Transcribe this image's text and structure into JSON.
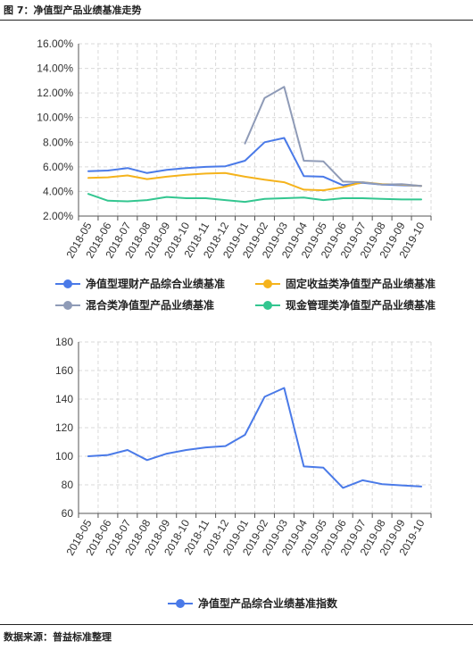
{
  "figure": {
    "title": "图 7：净值型产品业绩基准走势",
    "source": "数据来源：普益标准整理"
  },
  "colors": {
    "blue": "#4a7ae8",
    "orange": "#f5b31c",
    "gray": "#8f9bb7",
    "green": "#33c690"
  },
  "chart_data": [
    {
      "type": "line",
      "title": "",
      "x": [
        "2018-05",
        "2018-06",
        "2018-07",
        "2018-08",
        "2018-09",
        "2018-10",
        "2018-11",
        "2018-12",
        "2019-01",
        "2019-02",
        "2019-03",
        "2019-04",
        "2019-05",
        "2019-06",
        "2019-07",
        "2019-08",
        "2019-09",
        "2019-10"
      ],
      "ylim": [
        2,
        16
      ],
      "yticks": [
        2,
        4,
        6,
        8,
        10,
        12,
        14,
        16
      ],
      "ytick_labels": [
        "2.00%",
        "4.00%",
        "6.00%",
        "8.00%",
        "10.00%",
        "12.00%",
        "14.00%",
        "16.00%"
      ],
      "grid": true,
      "legend": "bottom",
      "series": [
        {
          "name": "净值型理财产品综合业绩基准",
          "color": "blue",
          "values": [
            5.65,
            5.7,
            5.9,
            5.5,
            5.75,
            5.9,
            6.0,
            6.05,
            6.5,
            8.0,
            8.35,
            5.25,
            5.2,
            4.5,
            4.7,
            4.55,
            4.5,
            4.45
          ]
        },
        {
          "name": "固定收益类净值型产品业绩基准",
          "color": "orange",
          "values": [
            5.1,
            5.15,
            5.3,
            5.0,
            5.2,
            5.35,
            5.45,
            5.5,
            5.2,
            4.95,
            4.75,
            4.15,
            4.1,
            4.35,
            4.75,
            4.6,
            4.55,
            4.45
          ]
        },
        {
          "name": "混合类净值型产品业绩基准",
          "color": "gray",
          "values": [
            null,
            null,
            null,
            null,
            null,
            null,
            null,
            null,
            7.9,
            11.6,
            12.5,
            6.5,
            6.45,
            4.8,
            4.75,
            4.55,
            4.6,
            4.45
          ]
        },
        {
          "name": "现金管理类净值型产品业绩基准",
          "color": "green",
          "values": [
            3.8,
            3.25,
            3.2,
            3.3,
            3.55,
            3.45,
            3.45,
            3.3,
            3.15,
            3.4,
            3.45,
            3.5,
            3.3,
            3.45,
            3.45,
            3.4,
            3.35,
            3.35
          ]
        }
      ]
    },
    {
      "type": "line",
      "title": "",
      "x": [
        "2018-05",
        "2018-06",
        "2018-07",
        "2018-08",
        "2018-09",
        "2018-10",
        "2018-11",
        "2018-12",
        "2019-01",
        "2019-02",
        "2019-03",
        "2019-04",
        "2019-05",
        "2019-06",
        "2019-07",
        "2019-08",
        "2019-09",
        "2019-10"
      ],
      "ylim": [
        60,
        180
      ],
      "yticks": [
        60,
        80,
        100,
        120,
        140,
        160,
        180
      ],
      "ytick_labels": [
        "60",
        "80",
        "100",
        "120",
        "140",
        "160",
        "180"
      ],
      "grid": true,
      "legend": "bottom",
      "series": [
        {
          "name": "净值型产品综合业绩基准指数",
          "color": "blue",
          "values": [
            100.0,
            100.9,
            104.4,
            97.3,
            101.8,
            104.4,
            106.2,
            107.1,
            115.0,
            141.6,
            147.8,
            92.9,
            92.0,
            77.9,
            83.2,
            80.5,
            79.6,
            78.8
          ]
        }
      ]
    }
  ]
}
